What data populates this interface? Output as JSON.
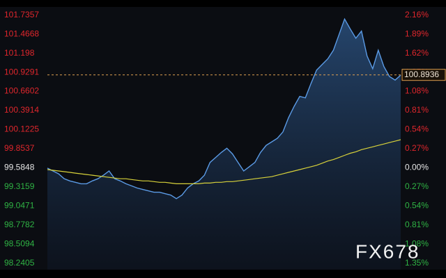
{
  "chart_data": {
    "type": "line",
    "base": 99.5848,
    "up_color": "#e0262c",
    "down_color": "#2fb344",
    "base_color": "#e6e6e6",
    "ylim": [
      98.15,
      101.85
    ],
    "yticks": [
      101.7357,
      101.4668,
      101.198,
      100.9291,
      100.6602,
      100.3914,
      100.1225,
      99.8537,
      99.5848,
      99.3159,
      99.0471,
      98.7782,
      98.5094,
      98.2405
    ],
    "y2lim": [
      -1.441,
      2.275
    ],
    "y2ticks": [
      {
        "value": 2.16,
        "label": "2.16%"
      },
      {
        "value": 1.89,
        "label": "1.89%"
      },
      {
        "value": 1.62,
        "label": "1.62%"
      },
      {
        "value": 1.35,
        "label": "1.35%"
      },
      {
        "value": 1.08,
        "label": "1.08%"
      },
      {
        "value": 0.81,
        "label": "0.81%"
      },
      {
        "value": 0.54,
        "label": "0.54%"
      },
      {
        "value": 0.27,
        "label": "0.27%"
      },
      {
        "value": 0,
        "label": "0.00%"
      },
      {
        "value": -0.27,
        "label": "0.27%"
      },
      {
        "value": -0.54,
        "label": "0.54%"
      },
      {
        "value": -0.81,
        "label": "0.81%"
      },
      {
        "value": -1.08,
        "label": "1.08%"
      },
      {
        "value": -1.35,
        "label": "1.35%"
      }
    ],
    "last_price": 100.8936,
    "last_price_color": "#e0a050",
    "watermark": "FX678",
    "series": [
      {
        "color": "#5b9be6",
        "area": true,
        "values": [
          99.58,
          99.54,
          99.5,
          99.43,
          99.4,
          99.38,
          99.36,
          99.36,
          99.4,
          99.43,
          99.48,
          99.54,
          99.43,
          99.4,
          99.36,
          99.33,
          99.3,
          99.28,
          99.26,
          99.24,
          99.24,
          99.22,
          99.2,
          99.15,
          99.2,
          99.3,
          99.36,
          99.4,
          99.48,
          99.66,
          99.73,
          99.8,
          99.86,
          99.78,
          99.66,
          99.54,
          99.6,
          99.66,
          99.8,
          99.9,
          99.95,
          100.0,
          100.09,
          100.29,
          100.45,
          100.59,
          100.57,
          100.77,
          100.96,
          101.04,
          101.12,
          101.24,
          101.46,
          101.68,
          101.54,
          101.41,
          101.51,
          101.16,
          100.98,
          101.24,
          101.01,
          100.87,
          100.82,
          100.89
        ]
      },
      {
        "color": "#d8d23a",
        "area": false,
        "values": [
          99.56,
          99.55,
          99.54,
          99.53,
          99.52,
          99.51,
          99.5,
          99.49,
          99.48,
          99.47,
          99.46,
          99.45,
          99.44,
          99.43,
          99.43,
          99.42,
          99.41,
          99.4,
          99.4,
          99.39,
          99.38,
          99.38,
          99.37,
          99.36,
          99.36,
          99.36,
          99.36,
          99.36,
          99.37,
          99.37,
          99.38,
          99.38,
          99.39,
          99.39,
          99.4,
          99.41,
          99.42,
          99.43,
          99.44,
          99.45,
          99.46,
          99.48,
          99.5,
          99.52,
          99.54,
          99.56,
          99.58,
          99.6,
          99.62,
          99.65,
          99.68,
          99.7,
          99.73,
          99.76,
          99.79,
          99.81,
          99.84,
          99.86,
          99.88,
          99.9,
          99.92,
          99.94,
          99.96,
          99.98
        ]
      }
    ]
  }
}
